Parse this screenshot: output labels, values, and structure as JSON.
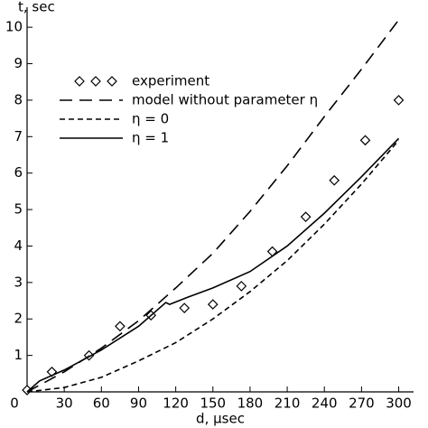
{
  "chart_data": {
    "type": "line",
    "x_label": "d, μsec",
    "y_label": "t, sec",
    "xlim": [
      0,
      312
    ],
    "ylim": [
      0,
      10.4
    ],
    "xticks": [
      0,
      30,
      60,
      90,
      120,
      150,
      180,
      210,
      240,
      270,
      300
    ],
    "yticks": [
      0,
      1,
      2,
      3,
      4,
      5,
      6,
      7,
      8,
      9,
      10
    ],
    "grid": false,
    "legend": "upper-left",
    "series": [
      {
        "name": "experiment",
        "color": "#000000",
        "style": "diamond",
        "x": [
          0,
          20,
          50,
          75,
          100,
          127,
          150,
          173,
          198,
          225,
          248,
          273,
          300
        ],
        "values": [
          0.05,
          0.55,
          1.0,
          1.8,
          2.1,
          2.3,
          2.4,
          2.9,
          3.85,
          4.8,
          5.8,
          6.9,
          8.0
        ]
      },
      {
        "name": "model without parameter η",
        "color": "#000000",
        "style": "long-dash",
        "x": [
          0,
          30,
          60,
          90,
          120,
          150,
          180,
          210,
          240,
          270,
          300
        ],
        "values": [
          0,
          0.55,
          1.2,
          1.95,
          2.85,
          3.8,
          4.95,
          6.2,
          7.55,
          8.85,
          10.2
        ]
      },
      {
        "name": "η = 0",
        "color": "#000000",
        "style": "short-dash",
        "x": [
          0,
          30,
          60,
          90,
          120,
          150,
          180,
          210,
          240,
          270,
          300
        ],
        "values": [
          0,
          0.12,
          0.4,
          0.85,
          1.35,
          2.0,
          2.75,
          3.6,
          4.6,
          5.7,
          6.9
        ]
      },
      {
        "name": "η = 1",
        "color": "#000000",
        "style": "solid",
        "x": [
          0,
          10,
          30,
          60,
          90,
          112,
          115,
          130,
          150,
          180,
          210,
          240,
          270,
          300
        ],
        "values": [
          0,
          0.3,
          0.6,
          1.15,
          1.8,
          2.45,
          2.4,
          2.6,
          2.85,
          3.3,
          4.0,
          4.9,
          5.9,
          6.95
        ]
      }
    ]
  }
}
